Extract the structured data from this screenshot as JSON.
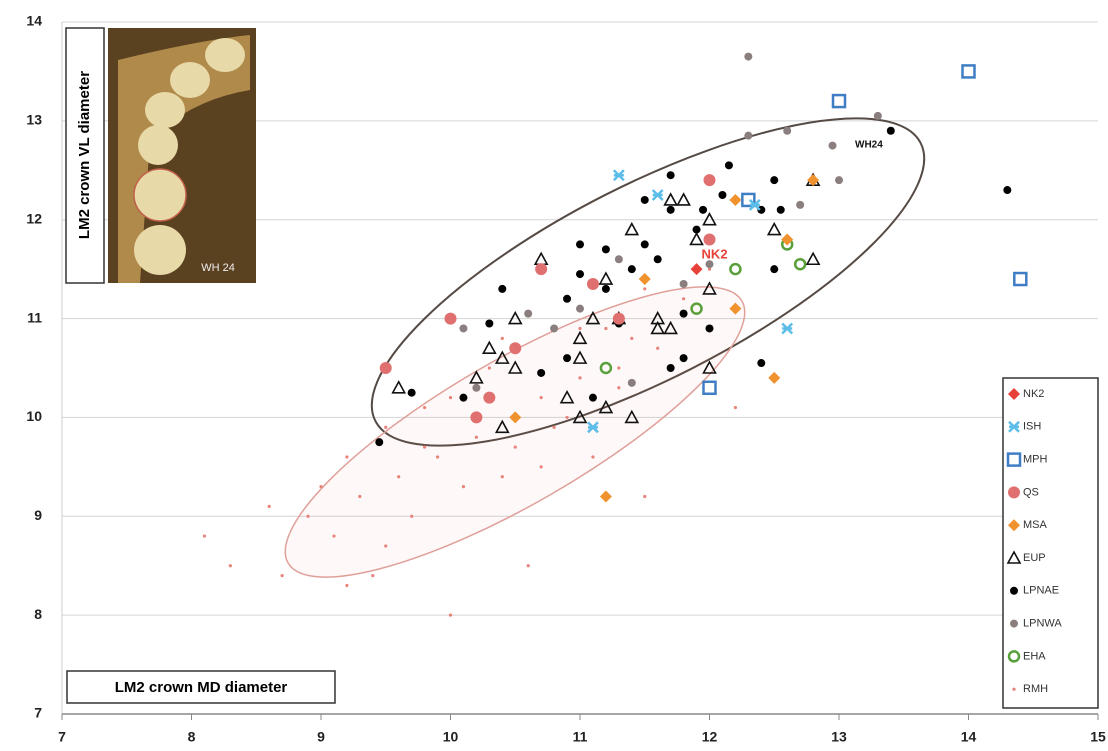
{
  "chart_data": {
    "type": "scatter",
    "x_label": "LM2 crown MD diameter",
    "y_label": "LM2 crown VL diameter",
    "annotations": [
      "NK2",
      "WH24",
      "WH 24"
    ],
    "xlim": [
      7,
      15
    ],
    "ylim": [
      7,
      14
    ],
    "xticks": [
      7,
      8,
      9,
      10,
      11,
      12,
      13,
      14,
      15
    ],
    "yticks": [
      7,
      8,
      9,
      10,
      11,
      12,
      13,
      14
    ],
    "grid": true,
    "legend": "lower right",
    "series": [
      {
        "name": "NK2",
        "color": "#e8413a",
        "marker": "diamond",
        "x": [
          11.9
        ],
        "values": [
          11.5
        ]
      },
      {
        "name": "ISH",
        "color": "#5bbde8",
        "marker": "star",
        "x": [
          11.3,
          11.6,
          12.6,
          11.1,
          12.35
        ],
        "values": [
          12.45,
          12.25,
          10.9,
          9.9,
          12.15
        ]
      },
      {
        "name": "MPH",
        "color": "#3f7ec4",
        "marker": "square",
        "x": [
          13.0,
          14.0,
          14.4,
          12.0,
          12.3
        ],
        "values": [
          13.2,
          13.5,
          11.4,
          10.3,
          12.2
        ]
      },
      {
        "name": "QS",
        "color": "#e07070",
        "marker": "circle",
        "x": [
          9.5,
          10.0,
          10.2,
          10.3,
          10.5,
          10.7,
          11.1,
          12.0,
          12.0,
          11.3
        ],
        "values": [
          10.5,
          11.0,
          10.0,
          10.2,
          10.7,
          11.5,
          11.35,
          12.4,
          11.8,
          11.0
        ]
      },
      {
        "name": "MSA",
        "color": "#f0922e",
        "marker": "diamond",
        "x": [
          11.2,
          10.5,
          12.5,
          12.2,
          12.2,
          12.8,
          11.5,
          12.6
        ],
        "values": [
          9.2,
          10.0,
          10.4,
          11.1,
          12.2,
          12.4,
          11.4,
          11.8
        ]
      },
      {
        "name": "EUP",
        "color": "#111111",
        "marker": "triangle",
        "x": [
          9.6,
          10.2,
          10.3,
          10.4,
          10.5,
          10.5,
          10.7,
          10.9,
          11.0,
          11.0,
          11.0,
          11.1,
          11.2,
          11.3,
          11.4,
          11.4,
          11.6,
          11.7,
          11.8,
          11.9,
          12.0,
          12.0,
          12.5,
          12.8,
          12.8,
          11.7,
          11.6,
          10.4,
          11.2,
          12.0
        ],
        "values": [
          10.3,
          10.4,
          10.7,
          9.9,
          10.5,
          11.0,
          11.6,
          10.2,
          10.0,
          10.8,
          10.6,
          11.0,
          10.1,
          11.0,
          10.0,
          11.9,
          11.0,
          12.2,
          12.2,
          11.8,
          12.0,
          10.5,
          11.9,
          12.4,
          11.6,
          10.9,
          10.9,
          10.6,
          11.4,
          11.3
        ]
      },
      {
        "name": "LPNAE",
        "color": "#000000",
        "marker": "dot",
        "x": [
          9.45,
          9.7,
          10.4,
          10.1,
          10.3,
          10.7,
          10.9,
          10.9,
          11.0,
          11.0,
          11.1,
          11.2,
          11.3,
          11.4,
          11.5,
          11.5,
          11.6,
          11.7,
          11.7,
          11.8,
          11.8,
          11.7,
          11.9,
          12.0,
          12.1,
          12.15,
          12.4,
          12.5,
          12.5,
          12.55,
          12.4,
          13.4,
          14.3,
          11.95,
          11.2
        ],
        "values": [
          9.75,
          10.25,
          11.3,
          10.2,
          10.95,
          10.45,
          10.6,
          11.2,
          11.75,
          11.45,
          10.2,
          11.3,
          10.95,
          11.5,
          12.2,
          11.75,
          11.6,
          12.1,
          12.45,
          11.05,
          10.6,
          10.5,
          11.9,
          10.9,
          12.25,
          12.55,
          12.1,
          11.5,
          12.4,
          12.1,
          10.55,
          12.9,
          12.3,
          12.1,
          11.7
        ]
      },
      {
        "name": "LPNWA",
        "color": "#8a7e7e",
        "marker": "dot",
        "x": [
          12.3,
          12.3,
          12.6,
          12.95,
          13.3,
          13.0,
          12.7,
          11.4,
          10.1,
          10.6,
          11.0,
          11.8,
          10.8,
          11.3,
          12.0,
          10.2
        ],
        "values": [
          13.65,
          12.85,
          12.9,
          12.75,
          13.05,
          12.4,
          12.15,
          10.35,
          10.9,
          11.05,
          11.1,
          11.35,
          10.9,
          11.6,
          11.55,
          10.3
        ]
      },
      {
        "name": "EHA",
        "color": "#5aa03a",
        "marker": "ring",
        "x": [
          11.2,
          11.9,
          12.2,
          12.6,
          12.7
        ],
        "values": [
          10.5,
          11.1,
          11.5,
          11.75,
          11.55
        ]
      },
      {
        "name": "RMH",
        "color": "#e8837a",
        "marker": "small",
        "x": [
          8.1,
          8.3,
          8.6,
          8.7,
          8.9,
          9.0,
          9.1,
          9.2,
          9.3,
          9.4,
          9.5,
          9.6,
          9.7,
          9.8,
          9.9,
          10.0,
          10.1,
          10.2,
          10.3,
          10.4,
          10.5,
          10.6,
          10.7,
          10.8,
          10.9,
          11.0,
          11.1,
          11.2,
          11.3,
          11.4,
          11.5,
          11.6,
          11.8,
          12.0,
          12.2,
          9.5,
          9.8,
          10.0,
          10.4,
          10.7,
          11.0,
          11.3,
          9.2,
          10.9,
          11.5
        ],
        "values": [
          8.8,
          8.5,
          9.1,
          8.4,
          9.0,
          9.3,
          8.8,
          9.6,
          9.2,
          8.4,
          9.9,
          9.4,
          9.0,
          10.1,
          9.6,
          8.0,
          9.3,
          9.8,
          10.5,
          9.4,
          9.7,
          8.5,
          10.2,
          9.9,
          10.6,
          10.4,
          9.6,
          10.9,
          10.3,
          10.8,
          9.2,
          10.7,
          11.2,
          11.5,
          10.1,
          8.7,
          9.7,
          10.2,
          10.8,
          9.5,
          10.9,
          10.5,
          8.3,
          10.0,
          11.3
        ]
      }
    ]
  }
}
